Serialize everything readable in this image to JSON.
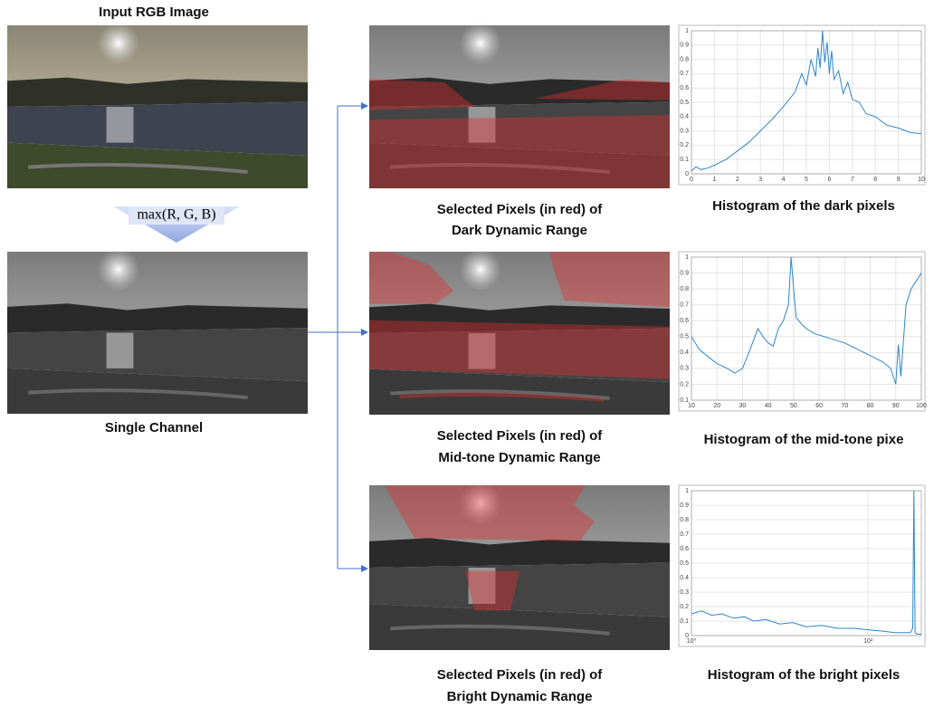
{
  "input": {
    "title": "Input RGB Image"
  },
  "operation": "max(R, G, B)",
  "single": {
    "caption": "Single Channel"
  },
  "rows": [
    {
      "caption": [
        "Selected Pixels (in red) of",
        "Dark Dynamic Range"
      ],
      "histogram": {
        "title": "Histogram of the dark pixels",
        "log": false,
        "color": "#2f86c8",
        "xlim": [
          0,
          10
        ],
        "ylim": [
          0,
          1
        ],
        "xticks": [
          0,
          1,
          2,
          3,
          4,
          5,
          6,
          7,
          8,
          9,
          10
        ],
        "yticks": [
          0,
          0.1,
          0.2,
          0.3,
          0.4,
          0.5,
          0.6,
          0.7,
          0.8,
          0.9,
          1
        ],
        "x": [
          0,
          0.2,
          0.4,
          0.7,
          1,
          1.5,
          2,
          2.5,
          3,
          3.5,
          4,
          4.5,
          4.8,
          5,
          5.2,
          5.4,
          5.5,
          5.6,
          5.7,
          5.8,
          5.9,
          6,
          6.1,
          6.2,
          6.4,
          6.6,
          6.8,
          7,
          7.3,
          7.6,
          8,
          8.5,
          9,
          9.5,
          10
        ],
        "values": [
          0.02,
          0.05,
          0.03,
          0.04,
          0.06,
          0.1,
          0.16,
          0.22,
          0.3,
          0.38,
          0.47,
          0.57,
          0.7,
          0.62,
          0.8,
          0.68,
          0.88,
          0.74,
          1,
          0.78,
          0.92,
          0.7,
          0.86,
          0.66,
          0.72,
          0.56,
          0.64,
          0.52,
          0.5,
          0.42,
          0.4,
          0.34,
          0.32,
          0.29,
          0.28
        ]
      }
    },
    {
      "caption": [
        "Selected Pixels (in red) of",
        "Mid-tone Dynamic Range"
      ],
      "histogram": {
        "title": "Histogram of the mid-tone pixe",
        "log": false,
        "color": "#2f86c8",
        "xlim": [
          10,
          100
        ],
        "ylim": [
          0.1,
          1
        ],
        "xticks": [
          10,
          20,
          30,
          40,
          50,
          60,
          70,
          80,
          90,
          100
        ],
        "yticks": [
          0.1,
          0.2,
          0.3,
          0.4,
          0.5,
          0.6,
          0.7,
          0.8,
          0.9,
          1
        ],
        "x": [
          10,
          13,
          16,
          20,
          24,
          27,
          30,
          33,
          36,
          38,
          40,
          42,
          44,
          46,
          48,
          49,
          50,
          51,
          53,
          55,
          58,
          62,
          66,
          70,
          75,
          80,
          85,
          88,
          90,
          91,
          92,
          94,
          96,
          98,
          100
        ],
        "values": [
          0.5,
          0.42,
          0.38,
          0.33,
          0.3,
          0.27,
          0.3,
          0.42,
          0.55,
          0.5,
          0.46,
          0.44,
          0.55,
          0.6,
          0.7,
          1,
          0.8,
          0.62,
          0.58,
          0.55,
          0.52,
          0.5,
          0.48,
          0.46,
          0.42,
          0.38,
          0.34,
          0.3,
          0.2,
          0.45,
          0.25,
          0.7,
          0.8,
          0.85,
          0.9
        ]
      }
    },
    {
      "caption": [
        "Selected Pixels (in red) of",
        "Bright Dynamic Range"
      ],
      "histogram": {
        "title": "Histogram of the bright pixels",
        "log": true,
        "color": "#2f86c8",
        "xlim": [
          1,
          400
        ],
        "ylim": [
          0,
          1
        ],
        "xticks": [
          {
            "value": 1,
            "label": "10⁰"
          },
          {
            "value": 100,
            "label": "10²"
          }
        ],
        "yticks": [
          0,
          0.1,
          0.2,
          0.3,
          0.4,
          0.5,
          0.6,
          0.7,
          0.8,
          0.9,
          1
        ],
        "x": [
          1,
          1.3,
          1.7,
          2.2,
          3,
          4,
          5,
          7,
          10,
          14,
          20,
          30,
          45,
          70,
          100,
          150,
          200,
          260,
          300,
          320,
          330,
          340,
          360,
          400
        ],
        "values": [
          0.15,
          0.17,
          0.14,
          0.15,
          0.12,
          0.13,
          0.1,
          0.11,
          0.08,
          0.09,
          0.06,
          0.07,
          0.05,
          0.05,
          0.04,
          0.03,
          0.02,
          0.02,
          0.02,
          0.05,
          1,
          0.02,
          0.01,
          0.01
        ]
      }
    }
  ]
}
